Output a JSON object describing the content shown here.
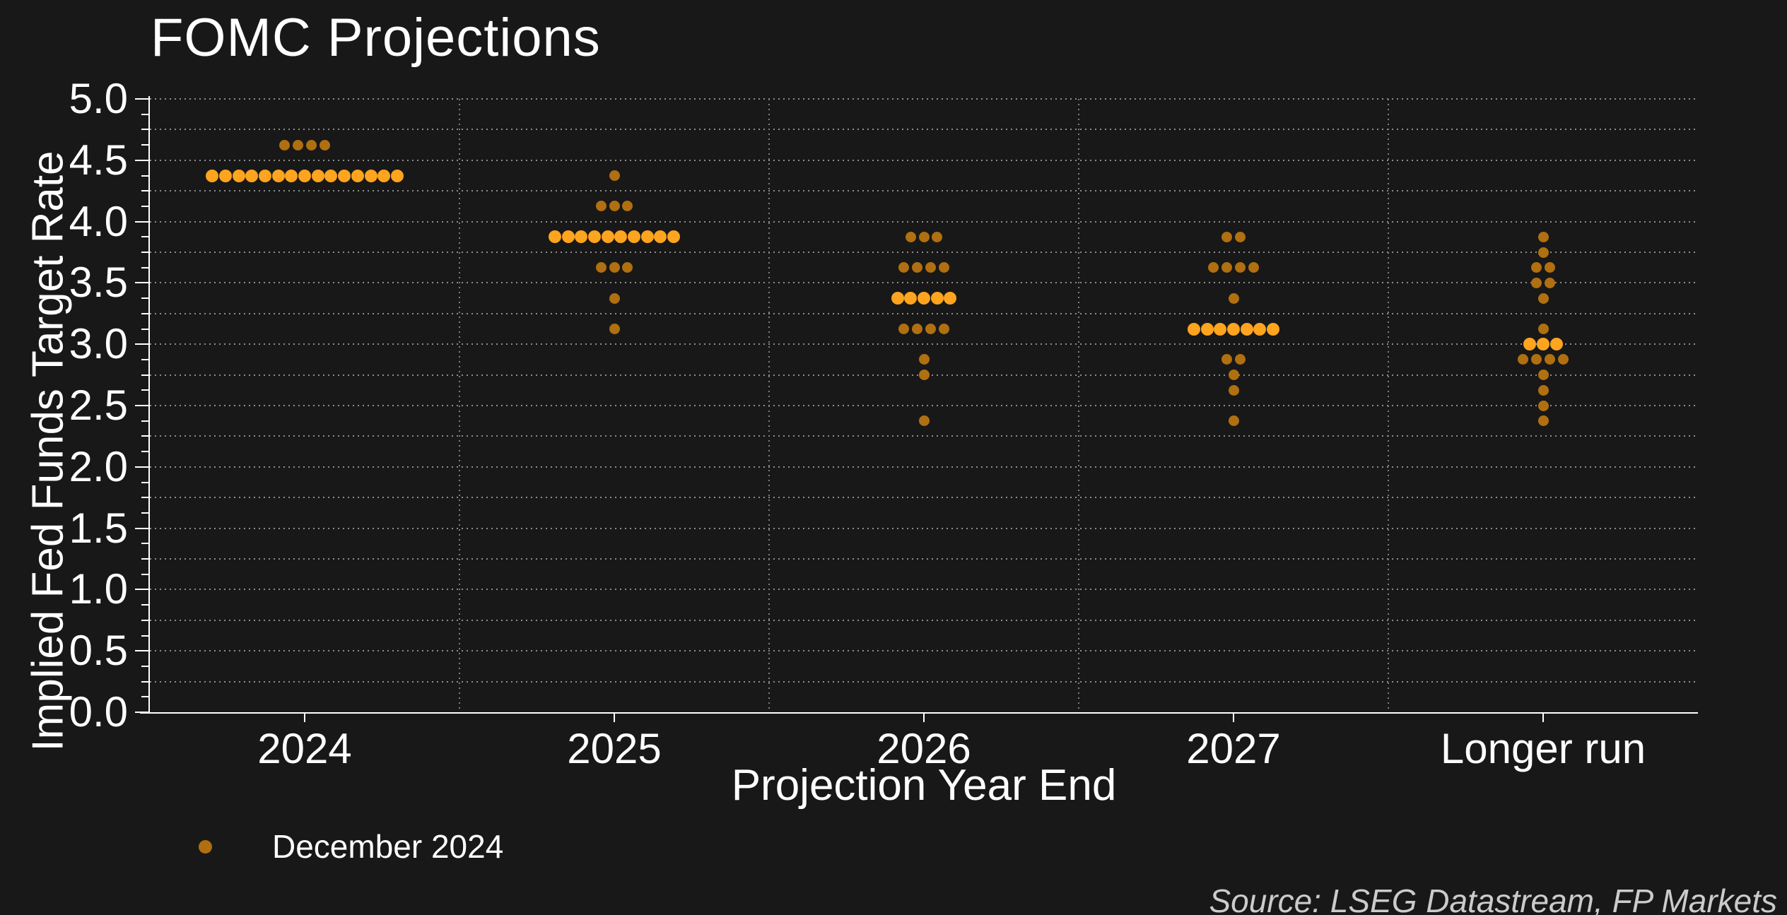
{
  "title": "FOMC Projections",
  "source": "Source: LSEG Datastream, FP Markets",
  "colors": {
    "background": "#181818",
    "axis": "#ffffff",
    "text": "#ffffff",
    "grid": "#8d8d8d",
    "dot_normal": "#b06f10",
    "dot_highlight": "#ffa41e",
    "source_text": "#cbcbcb"
  },
  "legend": {
    "label": "December 2024",
    "marker_color": "#b06f10"
  },
  "chart_data": {
    "type": "scatter",
    "title": "FOMC Projections",
    "xlabel": "Projection Year End",
    "ylabel": "Implied Fed Funds Target Rate",
    "categories": [
      "2024",
      "2025",
      "2026",
      "2027",
      "Longer run"
    ],
    "ylim": [
      0.0,
      5.0
    ],
    "y_major_tick_step": 0.5,
    "y_minor_tick_step": 0.125,
    "grid_step": 0.25,
    "grid_style": "dotted",
    "legend_position": "bottom-left",
    "legend_entries": [
      "December 2024"
    ],
    "series": [
      {
        "category": "2024",
        "points": [
          {
            "rate": 4.625,
            "count": 4,
            "median": false
          },
          {
            "rate": 4.375,
            "count": 15,
            "median": true
          }
        ]
      },
      {
        "category": "2025",
        "points": [
          {
            "rate": 4.375,
            "count": 1,
            "median": false
          },
          {
            "rate": 4.125,
            "count": 3,
            "median": false
          },
          {
            "rate": 3.875,
            "count": 10,
            "median": true
          },
          {
            "rate": 3.625,
            "count": 3,
            "median": false
          },
          {
            "rate": 3.375,
            "count": 1,
            "median": false
          },
          {
            "rate": 3.125,
            "count": 1,
            "median": false
          }
        ]
      },
      {
        "category": "2026",
        "points": [
          {
            "rate": 3.875,
            "count": 3,
            "median": false
          },
          {
            "rate": 3.625,
            "count": 4,
            "median": false
          },
          {
            "rate": 3.375,
            "count": 5,
            "median": true
          },
          {
            "rate": 3.125,
            "count": 4,
            "median": false
          },
          {
            "rate": 2.875,
            "count": 1,
            "median": false
          },
          {
            "rate": 2.75,
            "count": 1,
            "median": false
          },
          {
            "rate": 2.375,
            "count": 1,
            "median": false
          }
        ]
      },
      {
        "category": "2027",
        "points": [
          {
            "rate": 3.875,
            "count": 2,
            "median": false
          },
          {
            "rate": 3.625,
            "count": 4,
            "median": false
          },
          {
            "rate": 3.375,
            "count": 1,
            "median": false
          },
          {
            "rate": 3.125,
            "count": 7,
            "median": true
          },
          {
            "rate": 2.875,
            "count": 2,
            "median": false
          },
          {
            "rate": 2.75,
            "count": 1,
            "median": false
          },
          {
            "rate": 2.625,
            "count": 1,
            "median": false
          },
          {
            "rate": 2.375,
            "count": 1,
            "median": false
          }
        ]
      },
      {
        "category": "Longer run",
        "points": [
          {
            "rate": 3.875,
            "count": 1,
            "median": false
          },
          {
            "rate": 3.75,
            "count": 1,
            "median": false
          },
          {
            "rate": 3.625,
            "count": 2,
            "median": false
          },
          {
            "rate": 3.5,
            "count": 2,
            "median": false
          },
          {
            "rate": 3.375,
            "count": 1,
            "median": false
          },
          {
            "rate": 3.125,
            "count": 1,
            "median": false
          },
          {
            "rate": 3.0,
            "count": 3,
            "median": true
          },
          {
            "rate": 2.875,
            "count": 4,
            "median": false
          },
          {
            "rate": 2.75,
            "count": 1,
            "median": false
          },
          {
            "rate": 2.625,
            "count": 1,
            "median": false
          },
          {
            "rate": 2.5,
            "count": 1,
            "median": false
          },
          {
            "rate": 2.375,
            "count": 1,
            "median": false
          }
        ]
      }
    ]
  }
}
